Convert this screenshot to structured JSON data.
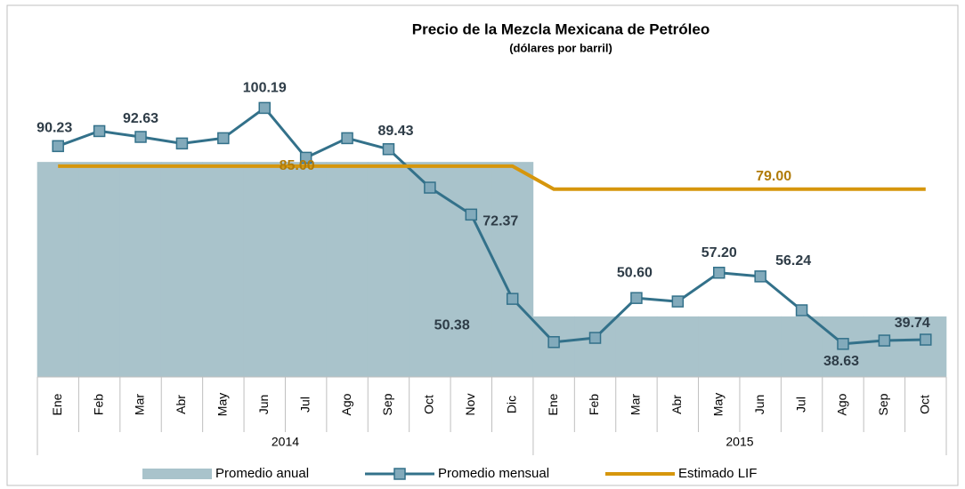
{
  "chart_data": {
    "type": "line",
    "title": "Precio de la Mezcla Mexicana de Petróleo",
    "subtitle": "(dólares por barril)",
    "groups": [
      {
        "label": "2014",
        "categories": [
          "Ene",
          "Feb",
          "Mar",
          "Abr",
          "May",
          "Jun",
          "Jul",
          "Ago",
          "Sep",
          "Oct",
          "Nov",
          "Dic"
        ]
      },
      {
        "label": "2015",
        "categories": [
          "Ene",
          "Feb",
          "Mar",
          "Abr",
          "May",
          "Jun",
          "Jul",
          "Ago",
          "Sep",
          "Oct"
        ]
      }
    ],
    "ylim": [
      30,
      120
    ],
    "series": [
      {
        "name": "Promedio anual",
        "type": "area",
        "color": "#a9c3cb",
        "values": [
          86.1,
          86.1,
          86.1,
          86.1,
          86.1,
          86.1,
          86.1,
          86.1,
          86.1,
          86.1,
          86.1,
          86.1,
          45.8,
          45.8,
          45.8,
          45.8,
          45.8,
          45.8,
          45.8,
          45.8,
          45.8,
          45.8
        ]
      },
      {
        "name": "Promedio mensual",
        "type": "line",
        "color": "#33718a",
        "marker_color": "#82aabb",
        "values": [
          90.23,
          94.15,
          92.63,
          90.92,
          92.3,
          100.19,
          87.2,
          92.3,
          89.43,
          79.4,
          72.37,
          50.38,
          39.1,
          40.2,
          50.6,
          49.7,
          57.2,
          56.24,
          47.4,
          38.63,
          39.5,
          39.74
        ],
        "value_labels": [
          "90.23",
          null,
          "92.63",
          null,
          null,
          "100.19",
          null,
          null,
          "89.43",
          null,
          "72.37",
          "50.38",
          null,
          null,
          "50.60",
          null,
          "57.20",
          "56.24",
          null,
          "38.63",
          null,
          "39.74"
        ]
      },
      {
        "name": "Estimado LIF",
        "type": "line",
        "color": "#d6960c",
        "label_color": "#b07b0a",
        "values": [
          85,
          85,
          85,
          85,
          85,
          85,
          85,
          85,
          85,
          85,
          85,
          85,
          79,
          79,
          79,
          79,
          79,
          79,
          79,
          79,
          79,
          79
        ],
        "value_labels": [
          null,
          null,
          null,
          null,
          null,
          null,
          "85.00",
          null,
          null,
          null,
          null,
          null,
          null,
          null,
          null,
          null,
          null,
          "79.00",
          null,
          null,
          null,
          null
        ]
      }
    ]
  }
}
